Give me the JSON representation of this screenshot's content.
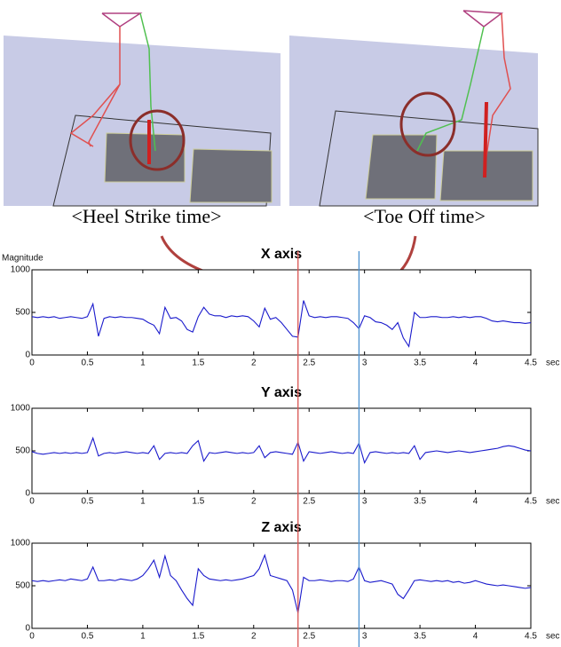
{
  "captions": [
    "<Heel Strike time>",
    "<Toe Off time>"
  ],
  "markers": [
    {
      "x": 2.4,
      "color": "#d9534f"
    },
    {
      "x": 2.95,
      "color": "#4a90d0"
    }
  ],
  "chart_data": [
    {
      "type": "line",
      "title": "X axis",
      "ylabel": "Magnitude",
      "xlabel": "sec",
      "xlim": [
        0,
        4.5
      ],
      "xticks": [
        0,
        0.5,
        1,
        1.5,
        2,
        2.5,
        3,
        3.5,
        4,
        4.5
      ],
      "ylim": [
        0,
        1000
      ],
      "yticks": [
        0,
        500,
        1000
      ],
      "x": [
        0,
        0.05,
        0.1,
        0.15,
        0.2,
        0.25,
        0.3,
        0.35,
        0.4,
        0.45,
        0.5,
        0.55,
        0.6,
        0.65,
        0.7,
        0.75,
        0.8,
        0.85,
        0.9,
        0.95,
        1,
        1.05,
        1.1,
        1.15,
        1.2,
        1.25,
        1.3,
        1.35,
        1.4,
        1.45,
        1.5,
        1.55,
        1.6,
        1.65,
        1.7,
        1.75,
        1.8,
        1.85,
        1.9,
        1.95,
        2,
        2.05,
        2.1,
        2.15,
        2.2,
        2.25,
        2.3,
        2.35,
        2.4,
        2.45,
        2.5,
        2.55,
        2.6,
        2.65,
        2.7,
        2.75,
        2.8,
        2.85,
        2.9,
        2.95,
        3,
        3.05,
        3.1,
        3.15,
        3.2,
        3.25,
        3.3,
        3.35,
        3.4,
        3.45,
        3.5,
        3.55,
        3.6,
        3.65,
        3.7,
        3.75,
        3.8,
        3.85,
        3.9,
        3.95,
        4,
        4.05,
        4.1,
        4.15,
        4.2,
        4.25,
        4.3,
        4.35,
        4.4,
        4.45,
        4.5
      ],
      "series": [
        {
          "color": "#1a1acc",
          "values": [
            450,
            440,
            450,
            440,
            450,
            430,
            440,
            450,
            440,
            430,
            450,
            600,
            220,
            430,
            450,
            440,
            450,
            440,
            440,
            430,
            420,
            380,
            350,
            250,
            560,
            430,
            440,
            400,
            300,
            270,
            450,
            560,
            480,
            460,
            460,
            440,
            460,
            450,
            460,
            450,
            400,
            330,
            550,
            420,
            440,
            380,
            300,
            220,
            210,
            640,
            460,
            440,
            450,
            440,
            450,
            450,
            440,
            430,
            380,
            310,
            460,
            440,
            390,
            380,
            350,
            300,
            380,
            200,
            100,
            500,
            440,
            440,
            450,
            450,
            440,
            440,
            450,
            440,
            450,
            440,
            450,
            450,
            430,
            400,
            390,
            400,
            390,
            380,
            380,
            370,
            380
          ]
        }
      ]
    },
    {
      "type": "line",
      "title": "Y axis",
      "xlabel": "sec",
      "xlim": [
        0,
        4.5
      ],
      "xticks": [
        0,
        0.5,
        1,
        1.5,
        2,
        2.5,
        3,
        3.5,
        4,
        4.5
      ],
      "ylim": [
        0,
        1000
      ],
      "yticks": [
        0,
        500,
        1000
      ],
      "x": [
        0,
        0.05,
        0.1,
        0.15,
        0.2,
        0.25,
        0.3,
        0.35,
        0.4,
        0.45,
        0.5,
        0.55,
        0.6,
        0.65,
        0.7,
        0.75,
        0.8,
        0.85,
        0.9,
        0.95,
        1,
        1.05,
        1.1,
        1.15,
        1.2,
        1.25,
        1.3,
        1.35,
        1.4,
        1.45,
        1.5,
        1.55,
        1.6,
        1.65,
        1.7,
        1.75,
        1.8,
        1.85,
        1.9,
        1.95,
        2,
        2.05,
        2.1,
        2.15,
        2.2,
        2.25,
        2.3,
        2.35,
        2.4,
        2.45,
        2.5,
        2.55,
        2.6,
        2.65,
        2.7,
        2.75,
        2.8,
        2.85,
        2.9,
        2.95,
        3,
        3.05,
        3.1,
        3.15,
        3.2,
        3.25,
        3.3,
        3.35,
        3.4,
        3.45,
        3.5,
        3.55,
        3.6,
        3.65,
        3.7,
        3.75,
        3.8,
        3.85,
        3.9,
        3.95,
        4,
        4.05,
        4.1,
        4.15,
        4.2,
        4.25,
        4.3,
        4.35,
        4.4,
        4.45,
        4.5
      ],
      "series": [
        {
          "color": "#1a1acc",
          "values": [
            490,
            470,
            460,
            470,
            480,
            470,
            480,
            470,
            480,
            470,
            480,
            650,
            440,
            470,
            480,
            470,
            480,
            490,
            480,
            470,
            480,
            470,
            560,
            400,
            470,
            480,
            470,
            480,
            470,
            560,
            620,
            380,
            480,
            470,
            480,
            490,
            480,
            470,
            480,
            470,
            480,
            560,
            420,
            480,
            490,
            480,
            470,
            460,
            600,
            380,
            490,
            480,
            470,
            480,
            490,
            480,
            470,
            480,
            470,
            590,
            360,
            480,
            490,
            480,
            470,
            480,
            470,
            480,
            470,
            560,
            400,
            480,
            490,
            500,
            490,
            480,
            490,
            500,
            490,
            480,
            490,
            500,
            510,
            520,
            530,
            550,
            560,
            550,
            530,
            510,
            500
          ]
        }
      ]
    },
    {
      "type": "line",
      "title": "Z axis",
      "xlabel": "sec",
      "xlim": [
        0,
        4.5
      ],
      "xticks": [
        0,
        0.5,
        1,
        1.5,
        2,
        2.5,
        3,
        3.5,
        4,
        4.5
      ],
      "ylim": [
        0,
        1000
      ],
      "yticks": [
        0,
        500,
        1000
      ],
      "x": [
        0,
        0.05,
        0.1,
        0.15,
        0.2,
        0.25,
        0.3,
        0.35,
        0.4,
        0.45,
        0.5,
        0.55,
        0.6,
        0.65,
        0.7,
        0.75,
        0.8,
        0.85,
        0.9,
        0.95,
        1,
        1.05,
        1.1,
        1.15,
        1.2,
        1.25,
        1.3,
        1.35,
        1.4,
        1.45,
        1.5,
        1.55,
        1.6,
        1.65,
        1.7,
        1.75,
        1.8,
        1.85,
        1.9,
        1.95,
        2,
        2.05,
        2.1,
        2.15,
        2.2,
        2.25,
        2.3,
        2.35,
        2.4,
        2.45,
        2.5,
        2.55,
        2.6,
        2.65,
        2.7,
        2.75,
        2.8,
        2.85,
        2.9,
        2.95,
        3,
        3.05,
        3.1,
        3.15,
        3.2,
        3.25,
        3.3,
        3.35,
        3.4,
        3.45,
        3.5,
        3.55,
        3.6,
        3.65,
        3.7,
        3.75,
        3.8,
        3.85,
        3.9,
        3.95,
        4,
        4.05,
        4.1,
        4.15,
        4.2,
        4.25,
        4.3,
        4.35,
        4.4,
        4.45,
        4.5
      ],
      "series": [
        {
          "color": "#1a1acc",
          "values": [
            560,
            550,
            560,
            550,
            560,
            570,
            560,
            580,
            570,
            560,
            580,
            720,
            560,
            560,
            570,
            560,
            580,
            570,
            560,
            580,
            620,
            700,
            800,
            600,
            850,
            620,
            560,
            450,
            350,
            270,
            700,
            620,
            580,
            570,
            560,
            570,
            560,
            570,
            580,
            600,
            620,
            700,
            860,
            620,
            600,
            580,
            560,
            450,
            180,
            600,
            560,
            560,
            570,
            560,
            550,
            560,
            560,
            550,
            580,
            720,
            560,
            540,
            550,
            560,
            540,
            520,
            400,
            350,
            450,
            560,
            570,
            560,
            550,
            560,
            550,
            560,
            540,
            550,
            530,
            540,
            560,
            540,
            520,
            510,
            500,
            510,
            500,
            490,
            480,
            470,
            480
          ]
        }
      ]
    }
  ]
}
